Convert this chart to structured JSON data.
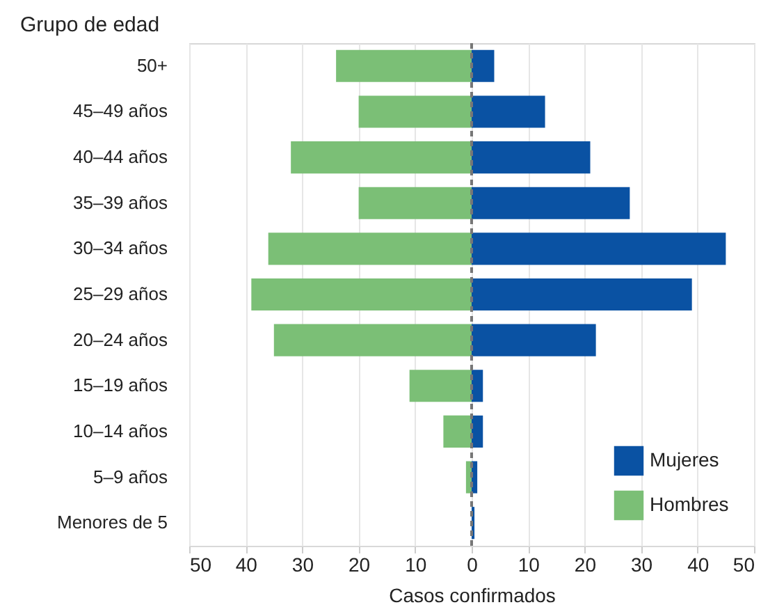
{
  "chart_data": {
    "type": "bar",
    "orientation": "horizontal",
    "xlabel": "Casos confirmados",
    "ylabel": "Grupo de edad",
    "categories": [
      "50+",
      "45–49 años",
      "40–44 años",
      "35–39 años",
      "30–34 años",
      "25–29 años",
      "20–24 años",
      "15–19 años",
      "10–14 años",
      "5–9 años",
      "Menores de 5"
    ],
    "series": [
      {
        "name": "Mujeres",
        "color": "#0a52a3",
        "values": [
          4,
          13,
          21,
          28,
          45,
          39,
          22,
          2,
          2,
          1,
          0.5
        ]
      },
      {
        "name": "Hombres",
        "color": "#7bbf76",
        "values": [
          -24,
          -20,
          -32,
          -20,
          -36,
          -39,
          -35,
          -11,
          -5,
          -1,
          0
        ]
      }
    ],
    "xlim": [
      -50,
      50
    ],
    "xticks": [
      {
        "value": -50,
        "label": "50"
      },
      {
        "value": -40,
        "label": "40"
      },
      {
        "value": -30,
        "label": "30"
      },
      {
        "value": -20,
        "label": "20"
      },
      {
        "value": -10,
        "label": "10"
      },
      0,
      10,
      20,
      30,
      40,
      50
    ],
    "grid": "x",
    "legend": "bottom right",
    "stacked": true,
    "ref_lines": [
      {
        "axis": "x",
        "value": 0,
        "label": null,
        "color": "#777777",
        "line_style": "dashed"
      }
    ]
  }
}
